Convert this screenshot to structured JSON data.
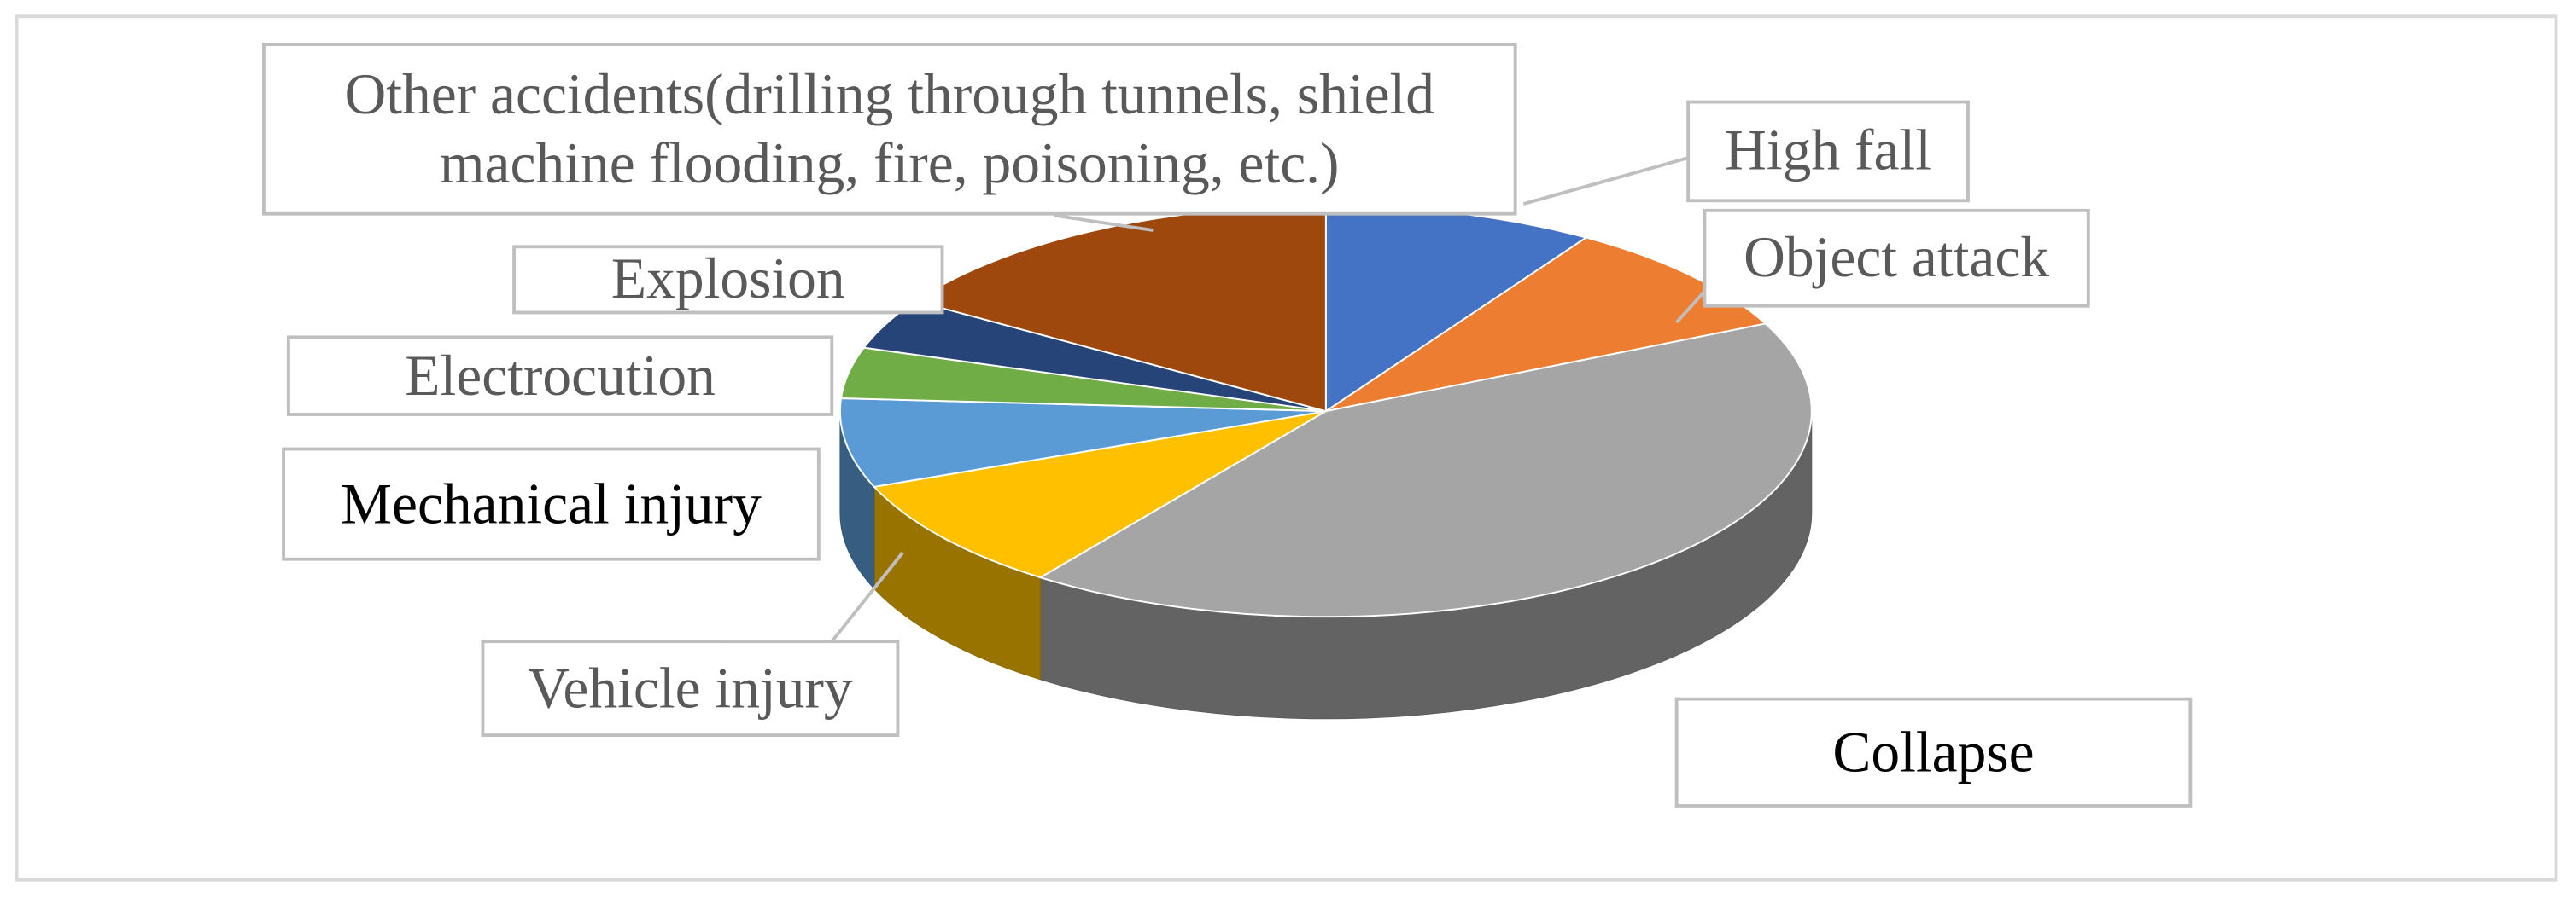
{
  "chart_data": {
    "type": "pie3d",
    "categories": [
      "High fall",
      "Object attack",
      "Collapse",
      "Vehicle injury",
      "Mechanical injury",
      "Electrocution",
      "Explosion",
      "Other accidents(drilling through tunnels, shield machine flooding, fire, poisoning, etc.)"
    ],
    "values": [
      9,
      9,
      42,
      9,
      7,
      4,
      4,
      16
    ],
    "colors": [
      "#4472c4",
      "#ed7d31",
      "#a5a5a5",
      "#ffc000",
      "#5b9bd5",
      "#70ad47",
      "#264478",
      "#9e480e"
    ]
  }
}
